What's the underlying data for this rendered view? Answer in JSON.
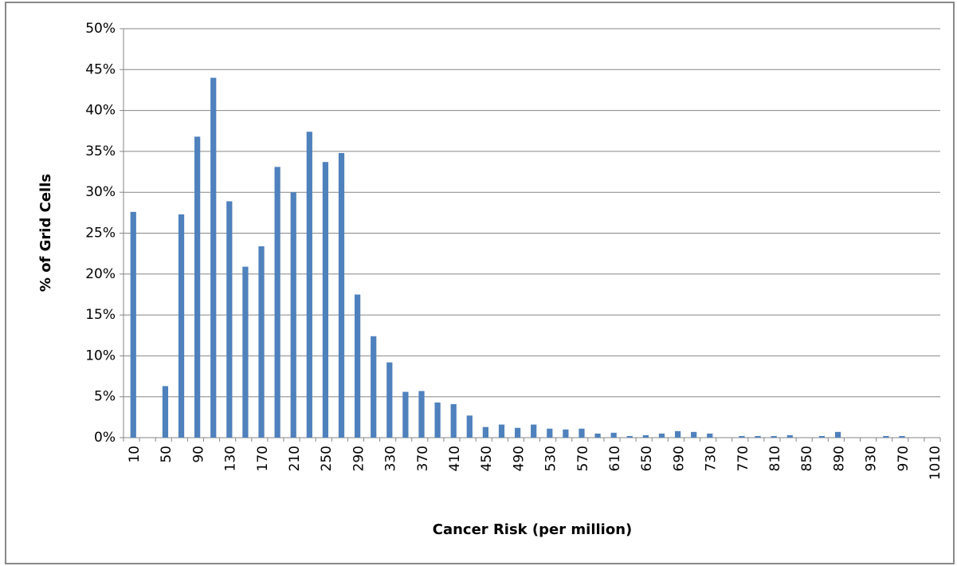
{
  "chart_data": {
    "type": "bar",
    "xlabel": "Cancer Risk (per million)",
    "ylabel": "% of Grid Cells",
    "categories": [
      "10",
      null,
      "50",
      null,
      "90",
      null,
      "130",
      null,
      "170",
      null,
      "210",
      null,
      "250",
      null,
      "290",
      null,
      "330",
      null,
      "370",
      null,
      "410",
      null,
      "450",
      null,
      "490",
      null,
      "530",
      null,
      "570",
      null,
      "610",
      null,
      "650",
      null,
      "690",
      null,
      "730",
      null,
      "770",
      null,
      "810",
      null,
      "850",
      null,
      "890",
      null,
      "930",
      null,
      "970",
      null,
      "1010"
    ],
    "values": [
      27.6,
      0,
      6.3,
      27.3,
      36.8,
      44.0,
      28.9,
      20.9,
      23.4,
      33.1,
      30.0,
      37.4,
      33.7,
      34.8,
      17.5,
      12.4,
      9.2,
      5.6,
      5.7,
      4.3,
      4.1,
      2.7,
      1.3,
      1.6,
      1.2,
      1.6,
      1.1,
      1.0,
      1.1,
      0.5,
      0.6,
      0.2,
      0.3,
      0.5,
      0.8,
      0.7,
      0.5,
      0,
      0.2,
      0.2,
      0.2,
      0.3,
      0,
      0.2,
      0.7,
      0,
      0,
      0.2,
      0.2,
      0,
      0
    ],
    "color": "#4f81bd",
    "ylim": [
      0,
      50
    ],
    "yticks": [
      {
        "value": 0,
        "label": "0%"
      },
      {
        "value": 5,
        "label": "5%"
      },
      {
        "value": 10,
        "label": "10%"
      },
      {
        "value": 15,
        "label": "15%"
      },
      {
        "value": 20,
        "label": "20%"
      },
      {
        "value": 25,
        "label": "25%"
      },
      {
        "value": 30,
        "label": "30%"
      },
      {
        "value": 35,
        "label": "35%"
      },
      {
        "value": 40,
        "label": "40%"
      },
      {
        "value": 45,
        "label": "45%"
      },
      {
        "value": 50,
        "label": "50%"
      }
    ],
    "grid": true
  }
}
